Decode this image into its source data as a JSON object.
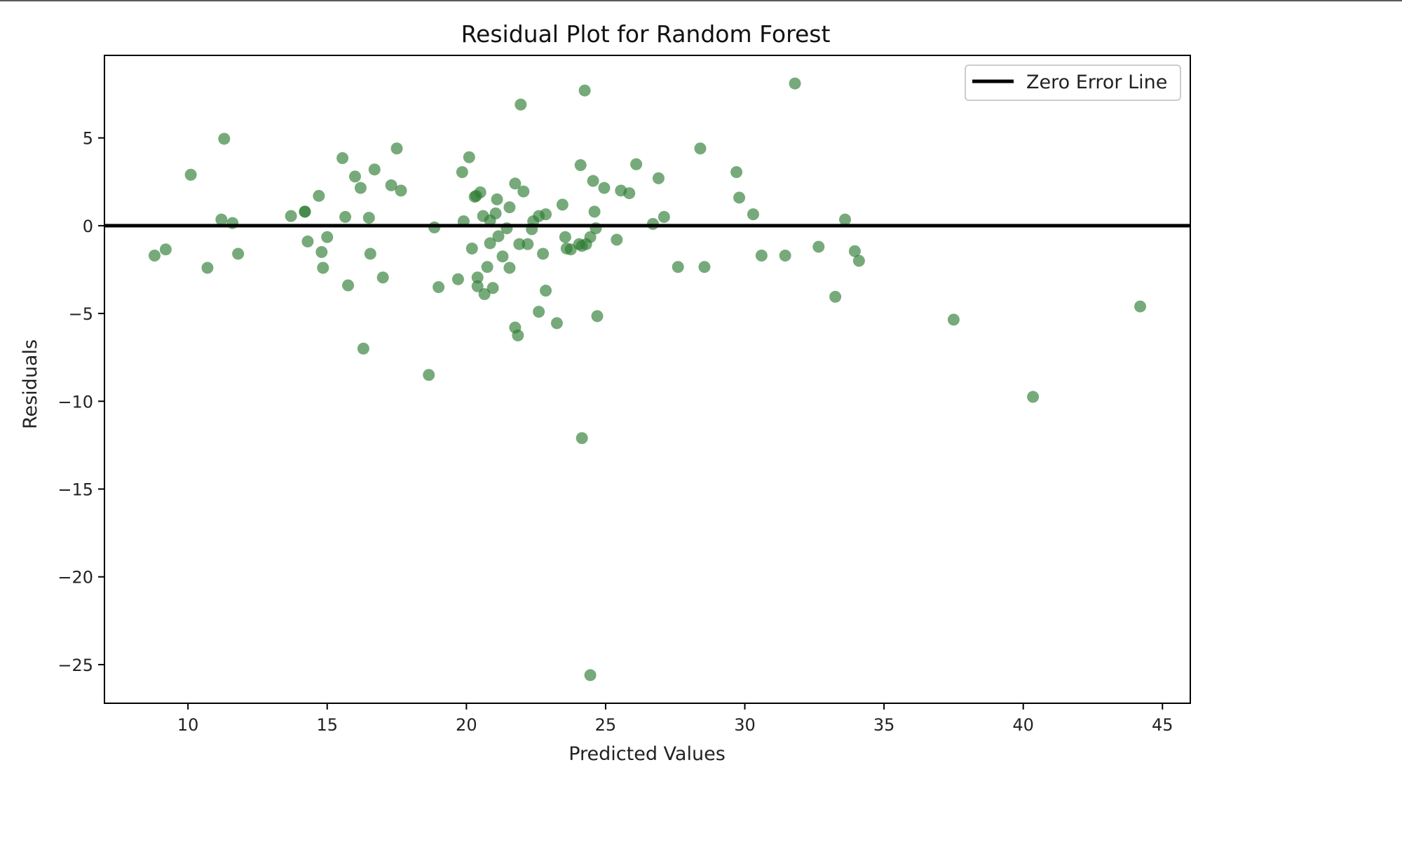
{
  "chart_data": {
    "type": "scatter",
    "title": "Residual Plot for Random Forest",
    "xlabel": "Predicted Values",
    "ylabel": "Residuals",
    "xlim": [
      7,
      46
    ],
    "ylim": [
      -27.2,
      9.7
    ],
    "xticks": [
      10,
      15,
      20,
      25,
      30,
      35,
      40,
      45
    ],
    "yticks": [
      5,
      0,
      -5,
      -10,
      -15,
      -20,
      -25
    ],
    "xtick_labels": [
      "10",
      "15",
      "20",
      "25",
      "30",
      "35",
      "40",
      "45"
    ],
    "ytick_labels": [
      "5",
      "0",
      "−5",
      "−10",
      "−15",
      "−20",
      "−25"
    ],
    "grid": false,
    "point_color": "#2e7d32",
    "point_alpha": 0.65,
    "reference_line": {
      "y": 0,
      "color": "#000000",
      "label": "Zero Error Line"
    },
    "legend": {
      "position": "top-right",
      "entries": [
        "Zero Error Line"
      ]
    },
    "points": [
      [
        8.8,
        -1.7
      ],
      [
        9.2,
        -1.35
      ],
      [
        10.1,
        2.9
      ],
      [
        10.7,
        -2.4
      ],
      [
        11.2,
        0.35
      ],
      [
        11.3,
        4.95
      ],
      [
        11.6,
        0.15
      ],
      [
        11.8,
        -1.6
      ],
      [
        13.7,
        0.55
      ],
      [
        14.2,
        0.8
      ],
      [
        14.2,
        0.8
      ],
      [
        14.3,
        -0.9
      ],
      [
        14.7,
        1.7
      ],
      [
        14.8,
        -1.5
      ],
      [
        14.85,
        -2.4
      ],
      [
        15.0,
        -0.65
      ],
      [
        15.55,
        3.85
      ],
      [
        15.65,
        0.5
      ],
      [
        15.75,
        -3.4
      ],
      [
        16.0,
        2.8
      ],
      [
        16.2,
        2.15
      ],
      [
        16.3,
        -7.0
      ],
      [
        16.5,
        0.45
      ],
      [
        16.55,
        -1.6
      ],
      [
        16.7,
        3.2
      ],
      [
        17.0,
        -2.95
      ],
      [
        17.3,
        2.3
      ],
      [
        17.5,
        4.4
      ],
      [
        17.65,
        2.0
      ],
      [
        18.65,
        -8.5
      ],
      [
        18.85,
        -0.1
      ],
      [
        19.0,
        -3.5
      ],
      [
        19.7,
        -3.05
      ],
      [
        19.85,
        3.05
      ],
      [
        19.9,
        0.25
      ],
      [
        20.1,
        3.9
      ],
      [
        20.2,
        -1.3
      ],
      [
        20.3,
        1.65
      ],
      [
        20.35,
        1.7
      ],
      [
        20.4,
        -2.95
      ],
      [
        20.4,
        -3.45
      ],
      [
        20.5,
        1.9
      ],
      [
        20.6,
        0.55
      ],
      [
        20.65,
        -3.9
      ],
      [
        20.75,
        -2.35
      ],
      [
        20.85,
        -1.0
      ],
      [
        20.85,
        0.3
      ],
      [
        20.95,
        -3.55
      ],
      [
        21.05,
        0.7
      ],
      [
        21.1,
        1.5
      ],
      [
        21.15,
        -0.6
      ],
      [
        21.3,
        -1.75
      ],
      [
        21.45,
        -0.15
      ],
      [
        21.55,
        -2.4
      ],
      [
        21.55,
        1.05
      ],
      [
        21.75,
        -5.8
      ],
      [
        21.75,
        2.4
      ],
      [
        21.85,
        -6.25
      ],
      [
        21.9,
        -1.05
      ],
      [
        21.95,
        6.9
      ],
      [
        22.05,
        1.95
      ],
      [
        22.2,
        -1.05
      ],
      [
        22.35,
        -0.2
      ],
      [
        22.4,
        0.25
      ],
      [
        22.6,
        0.55
      ],
      [
        22.6,
        -4.9
      ],
      [
        22.75,
        -1.6
      ],
      [
        22.85,
        0.65
      ],
      [
        22.85,
        -3.7
      ],
      [
        23.25,
        -5.55
      ],
      [
        23.45,
        1.2
      ],
      [
        23.55,
        -0.65
      ],
      [
        23.6,
        -1.3
      ],
      [
        23.75,
        -1.35
      ],
      [
        24.05,
        -1.05
      ],
      [
        24.1,
        3.45
      ],
      [
        24.15,
        -1.15
      ],
      [
        24.15,
        -12.1
      ],
      [
        24.25,
        7.7
      ],
      [
        24.3,
        -1.05
      ],
      [
        24.45,
        -0.65
      ],
      [
        24.45,
        -25.6
      ],
      [
        24.55,
        2.55
      ],
      [
        24.6,
        0.8
      ],
      [
        24.65,
        -0.15
      ],
      [
        24.7,
        -5.15
      ],
      [
        24.95,
        2.15
      ],
      [
        25.4,
        -0.8
      ],
      [
        25.55,
        2.0
      ],
      [
        25.85,
        1.85
      ],
      [
        26.1,
        3.5
      ],
      [
        26.7,
        0.1
      ],
      [
        26.9,
        2.7
      ],
      [
        27.1,
        0.5
      ],
      [
        27.6,
        -2.35
      ],
      [
        28.4,
        4.4
      ],
      [
        28.55,
        -2.35
      ],
      [
        29.7,
        3.05
      ],
      [
        29.8,
        1.6
      ],
      [
        30.3,
        0.65
      ],
      [
        30.6,
        -1.7
      ],
      [
        31.45,
        -1.7
      ],
      [
        31.8,
        8.1
      ],
      [
        32.65,
        -1.2
      ],
      [
        33.25,
        -4.05
      ],
      [
        33.6,
        0.35
      ],
      [
        33.95,
        -1.45
      ],
      [
        34.1,
        -2.0
      ],
      [
        37.5,
        -5.35
      ],
      [
        40.35,
        -9.75
      ],
      [
        44.2,
        -4.6
      ]
    ]
  }
}
